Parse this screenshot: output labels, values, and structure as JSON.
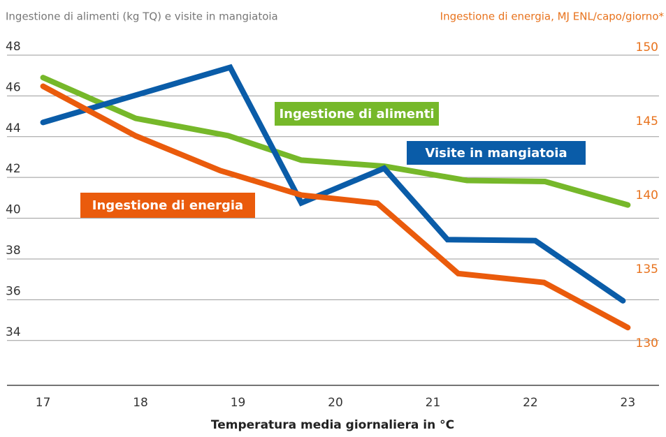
{
  "chart_data": {
    "type": "line",
    "subtitle": "Ingestione di alimenti (kg TQ) e visite in mangiatoia",
    "y2_label": "Ingestione di energia, MJ ENL/capo/giorno*",
    "x_label": "Temperatura media giornaliera in °C",
    "xlim": [
      16.63,
      23.32
    ],
    "xticks": [
      17,
      18,
      19,
      20,
      21,
      22,
      23
    ],
    "ylim": [
      31.8,
      48
    ],
    "yticks": [
      34,
      36,
      38,
      40,
      42,
      44,
      46,
      48
    ],
    "y2lim": [
      127.7,
      150
    ],
    "y2ticks": [
      130,
      135,
      140,
      145,
      150
    ],
    "grid": true,
    "series": [
      {
        "name": "Ingestione di alimenti",
        "color": "#76b82a",
        "x": [
          17,
          17.95,
          18.9,
          19.65,
          20.5,
          21.35,
          22.15,
          23
        ],
        "values": [
          46.9,
          44.9,
          44.05,
          42.85,
          42.55,
          41.85,
          41.8,
          40.65
        ]
      },
      {
        "name": "Visite in mangiatoia",
        "color": "#0a5ca8",
        "x": [
          17,
          18.92,
          19.65,
          20.5,
          21.15,
          22.05,
          22.95
        ],
        "values": [
          44.7,
          47.4,
          40.75,
          42.45,
          38.95,
          38.9,
          35.95
        ]
      },
      {
        "name": "Ingestione di energia",
        "color": "#ea5b0c",
        "axis": "y2",
        "x": [
          17,
          17.95,
          18.82,
          19.65,
          20.43,
          21.26,
          22.14,
          23
        ],
        "values": [
          147.9,
          144.55,
          142.2,
          140.55,
          140,
          135.25,
          134.65,
          131.6
        ]
      }
    ]
  }
}
